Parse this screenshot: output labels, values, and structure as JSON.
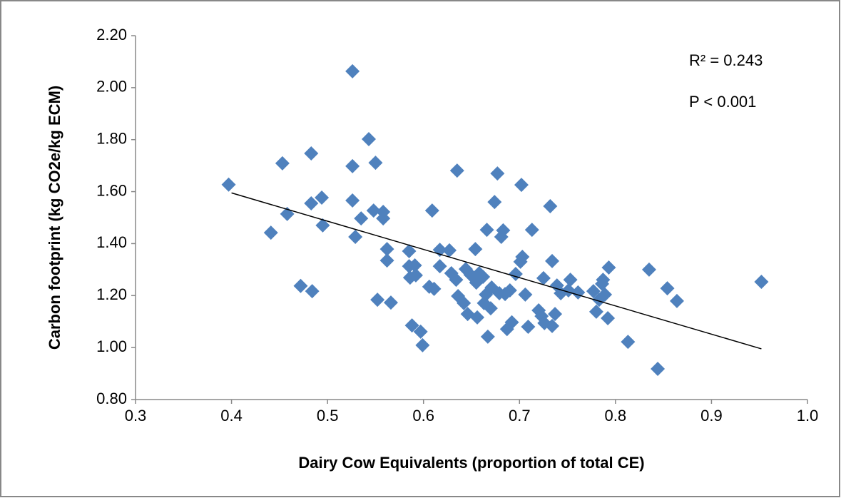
{
  "chart_data": {
    "type": "scatter",
    "x_label": "Dairy Cow Equivalents (proportion of total CE)",
    "y_label": "Carbon footprint (kg CO2e/kg ECM)",
    "annotations": [
      "R² = 0.243",
      "P < 0.001"
    ],
    "color": "#4f81bd",
    "xlim": [
      0.3,
      1.0
    ],
    "xticks": [
      0.3,
      0.4,
      0.5,
      0.6,
      0.7,
      0.8,
      0.9,
      {
        "value": 1.0,
        "label": "1.0"
      }
    ],
    "ylim": [
      0.8,
      2.2
    ],
    "yticks": [
      {
        "value": 0.8,
        "label": "0.80"
      },
      {
        "value": 1.0,
        "label": "1.00"
      },
      {
        "value": 1.2,
        "label": "1.20"
      },
      {
        "value": 1.4,
        "label": "1.40"
      },
      {
        "value": 1.6,
        "label": "1.60"
      },
      {
        "value": 1.8,
        "label": "1.80"
      },
      {
        "value": 2.0,
        "label": "2.00"
      },
      {
        "value": 2.2,
        "label": "2.20"
      }
    ],
    "grid": false,
    "trendline": {
      "x": [
        0.4,
        0.952
      ],
      "y": [
        1.595,
        0.995
      ]
    },
    "x": [
      0.397,
      0.458,
      0.441,
      0.453,
      0.483,
      0.483,
      0.494,
      0.495,
      0.472,
      0.484,
      0.526,
      0.526,
      0.526,
      0.529,
      0.535,
      0.543,
      0.55,
      0.548,
      0.558,
      0.558,
      0.562,
      0.562,
      0.552,
      0.566,
      0.585,
      0.585,
      0.586,
      0.591,
      0.592,
      0.588,
      0.597,
      0.599,
      0.609,
      0.606,
      0.611,
      0.617,
      0.617,
      0.627,
      0.629,
      0.635,
      0.634,
      0.636,
      0.642,
      0.644,
      0.646,
      0.649,
      0.654,
      0.655,
      0.656,
      0.658,
      0.662,
      0.663,
      0.665,
      0.666,
      0.667,
      0.67,
      0.671,
      0.674,
      0.677,
      0.679,
      0.681,
      0.683,
      0.685,
      0.687,
      0.69,
      0.692,
      0.696,
      0.701,
      0.703,
      0.706,
      0.709,
      0.713,
      0.72,
      0.723,
      0.702,
      0.725,
      0.726,
      0.732,
      0.734,
      0.734,
      0.737,
      0.739,
      0.743,
      0.751,
      0.753,
      0.761,
      0.777,
      0.78,
      0.783,
      0.786,
      0.787,
      0.789,
      0.792,
      0.793,
      0.813,
      0.835,
      0.844,
      0.854,
      0.864,
      0.952
    ],
    "y": [
      1.627,
      1.514,
      1.442,
      1.709,
      1.747,
      1.555,
      1.577,
      1.47,
      1.237,
      1.217,
      2.063,
      1.698,
      1.566,
      1.426,
      1.497,
      1.802,
      1.711,
      1.527,
      1.522,
      1.497,
      1.379,
      1.335,
      1.184,
      1.173,
      1.313,
      1.371,
      1.269,
      1.316,
      1.278,
      1.085,
      1.061,
      1.009,
      1.527,
      1.234,
      1.226,
      1.376,
      1.313,
      1.374,
      1.286,
      1.681,
      1.261,
      1.198,
      1.171,
      1.302,
      1.129,
      1.28,
      1.379,
      1.25,
      1.116,
      1.286,
      1.272,
      1.171,
      1.204,
      1.453,
      1.042,
      1.151,
      1.231,
      1.56,
      1.67,
      1.209,
      1.426,
      1.451,
      1.206,
      1.071,
      1.22,
      1.097,
      1.283,
      1.33,
      1.349,
      1.204,
      1.08,
      1.453,
      1.143,
      1.121,
      1.626,
      1.267,
      1.094,
      1.544,
      1.333,
      1.083,
      1.129,
      1.239,
      1.209,
      1.22,
      1.261,
      1.212,
      1.217,
      1.138,
      1.184,
      1.245,
      1.261,
      1.204,
      1.113,
      1.308,
      1.022,
      1.3,
      0.918,
      1.228,
      1.179,
      1.253
    ]
  }
}
